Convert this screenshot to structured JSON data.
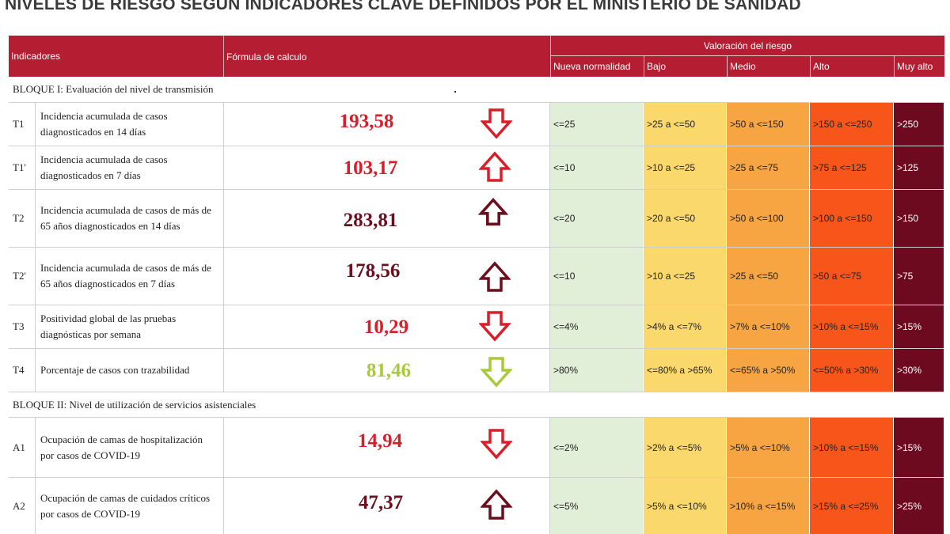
{
  "title": "NIVELES DE RIESGO SEGÚN INDICADORES CLAVE DEFINIDOS POR EL MINISTERIO DE SANIDAD",
  "header": {
    "indicadores": "Indicadores",
    "formula": "Fórmula de calculo",
    "valoracion": "Valoración del riesgo",
    "levels": [
      "Nueva normalidad",
      "Bajo",
      "Medio",
      "Alto",
      "Muy alto"
    ]
  },
  "colors": {
    "header_bg": "#b51d33",
    "nueva_normalidad": "#e1eed8",
    "bajo": "#fbd86c",
    "medio": "#f7a543",
    "alto": "#f7551a",
    "muy_alto": "#6e0a1f",
    "value_red": "#d91e2a",
    "value_dark": "#6b0f1f",
    "value_green": "#a8c93a"
  },
  "blocks": [
    {
      "label": "BLOQUE I: Evaluación del nivel de transmisión"
    },
    {
      "label": "BLOQUE II: Nivel de utilización de servicios asistenciales"
    }
  ],
  "rows": [
    {
      "code": "T1",
      "name": "Incidencia acumulada de casos diagnosticados en 14 días",
      "value": "193,58",
      "trend": "down",
      "value_color": "red",
      "levels": [
        "<=25",
        ">25 a <=50",
        ">50 a <=150",
        ">150 a <=250",
        ">250"
      ]
    },
    {
      "code": "T1'",
      "name": "Incidencia acumulada de casos diagnosticados en 7 días",
      "value": "103,17",
      "trend": "up",
      "value_color": "red",
      "levels": [
        "<=10",
        ">10 a <=25",
        ">25 a <=75",
        ">75 a <=125",
        ">125"
      ]
    },
    {
      "code": "T2",
      "name": "Incidencia acumulada de casos de más de 65 años diagnosticados en 14 días",
      "value": "283,81",
      "trend": "up",
      "value_color": "dark",
      "levels": [
        "<=20",
        ">20 a <=50",
        ">50 a <=100",
        ">100 a <=150",
        ">150"
      ]
    },
    {
      "code": "T2'",
      "name": "Incidencia acumulada de casos de más de 65 años diagnosticados en 7 días",
      "value": "178,56",
      "trend": "up",
      "value_color": "dark",
      "levels": [
        "<=10",
        ">10 a <=25",
        ">25 a <=50",
        ">50 a <=75",
        ">75"
      ]
    },
    {
      "code": "T3",
      "name": "Positividad global de las pruebas diagnósticas por semana",
      "value": "10,29",
      "trend": "down",
      "value_color": "red",
      "levels": [
        "<=4%",
        ">4% a <=7%",
        ">7% a <=10%",
        ">10% a <=15%",
        ">15%"
      ]
    },
    {
      "code": "T4",
      "name": "Porcentaje de casos con trazabilidad",
      "value": "81,46",
      "trend": "down",
      "value_color": "green",
      "levels": [
        ">80%",
        "<=80% a >65%",
        "<=65% a >50%",
        "<=50% a >30%",
        ">30%"
      ]
    },
    {
      "code": "A1",
      "name": "Ocupación de camas de hospitalización por casos de COVID-19",
      "value": "14,94",
      "trend": "down",
      "value_color": "red",
      "levels": [
        "<=2%",
        ">2% a <=5%",
        ">5% a <=10%",
        ">10% a <=15%",
        ">15%"
      ]
    },
    {
      "code": "A2",
      "name": "Ocupación de camas de cuidados críticos por casos de COVID-19",
      "value": "47,37",
      "trend": "up",
      "value_color": "dark",
      "levels": [
        "<=5%",
        ">5% a <=10%",
        ">10% a <=15%",
        ">15% a <=25%",
        ">25%"
      ]
    }
  ]
}
